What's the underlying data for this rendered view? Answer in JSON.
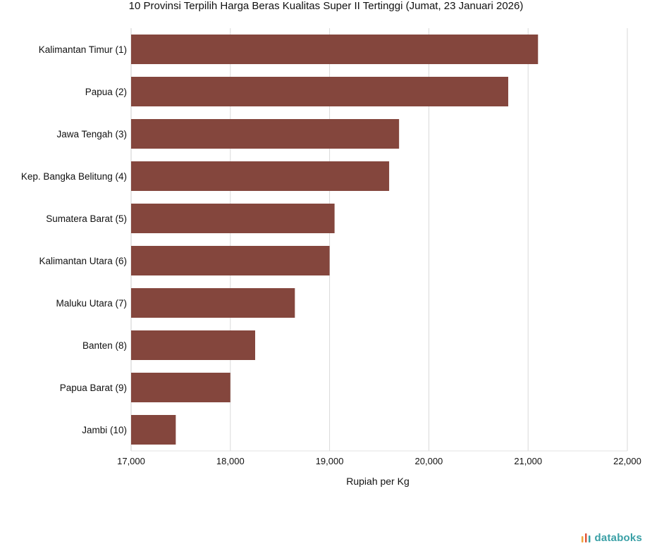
{
  "chart_data": {
    "type": "bar",
    "orientation": "horizontal",
    "title": "10 Provinsi Terpilih Harga Beras Kualitas Super II Tertinggi (Jumat, 23 Januari 2026)",
    "xlabel": "Rupiah per Kg",
    "ylabel": "",
    "categories": [
      "Kalimantan Timur (1)",
      "Papua (2)",
      "Jawa Tengah (3)",
      "Kep. Bangka Belitung (4)",
      "Sumatera Barat (5)",
      "Kalimantan Utara (6)",
      "Maluku Utara (7)",
      "Banten (8)",
      "Papua Barat (9)",
      "Jambi (10)"
    ],
    "values": [
      21100,
      20800,
      19700,
      19600,
      19050,
      19000,
      18650,
      18250,
      18000,
      17450
    ],
    "xlim": [
      17000,
      22000
    ],
    "ticks": [
      17000,
      18000,
      19000,
      20000,
      21000,
      22000
    ],
    "tick_labels": [
      "17,000",
      "18,000",
      "19,000",
      "20,000",
      "21,000",
      "22,000"
    ],
    "grid": "vertical",
    "legend": "none",
    "bar_color": "#84463d"
  },
  "brand": {
    "name": "databoks",
    "color": "#3aa0a6",
    "icon": "databoks-logo-icon",
    "icon_colors": [
      "#f0a33a",
      "#e0553a",
      "#3aa0a6"
    ]
  }
}
